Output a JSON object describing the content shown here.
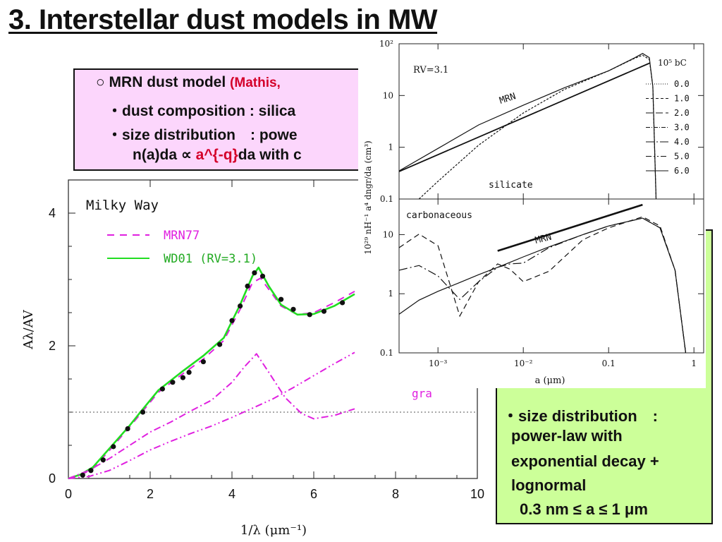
{
  "slide": {
    "title": "3. Interstellar dust models in MW"
  },
  "mrn_box": {
    "line1_bullet": "○",
    "line1_text": "MRN dust model",
    "line1_ref": "(Mathis,",
    "line2": "・dust composition : silica",
    "line3": "・size distribution　: powe",
    "line4_a": "n(a)da ∝ ",
    "line4_red": "a^{-q}",
    "line4_b": "da with c"
  },
  "wd_box": {
    "line1": "・size distribution　:",
    "line2": "power-law with",
    "line3": "exponential decay +",
    "line4": "lognormal",
    "line5": "0.3 nm ≤ a ≤ 1 μm"
  },
  "colors": {
    "mrn_box_bg": "#fcd6fc",
    "wd_box_bg": "#ccff99",
    "accent_red": "#d4002a",
    "mrn_curve": "#e020e0",
    "wd01_curve": "#22dd22"
  },
  "chart_data": [
    {
      "type": "line",
      "title": "Milky Way",
      "xlabel": "1/λ (μm⁻¹)",
      "ylabel": "Aλ/AV",
      "xlim": [
        0,
        10
      ],
      "ylim": [
        0,
        4.5
      ],
      "xticks": [
        0,
        2,
        4,
        6,
        8,
        10
      ],
      "yticks": [
        0,
        2,
        4
      ],
      "reference_line_y": 1,
      "legend": [
        "MRN77",
        "WD01 (RV=3.1)"
      ],
      "series": [
        {
          "name": "MRN77",
          "style": "dashed",
          "color": "#e020e0",
          "x": [
            0.0,
            0.3,
            0.6,
            1.0,
            1.5,
            1.8,
            2.2,
            2.8,
            3.3,
            3.8,
            4.2,
            4.5,
            4.7,
            4.9,
            5.2,
            5.6,
            6.0,
            6.5,
            7.0
          ],
          "y": [
            0.0,
            0.05,
            0.15,
            0.42,
            0.78,
            1.0,
            1.3,
            1.58,
            1.8,
            2.08,
            2.55,
            2.95,
            3.02,
            2.85,
            2.6,
            2.47,
            2.5,
            2.65,
            2.82
          ]
        },
        {
          "name": "WD01 (RV=3.1)",
          "style": "solid",
          "color": "#22dd22",
          "x": [
            0.0,
            0.3,
            0.6,
            1.0,
            1.5,
            1.8,
            2.2,
            2.8,
            3.3,
            3.8,
            4.2,
            4.5,
            4.65,
            4.9,
            5.2,
            5.6,
            6.0,
            6.5,
            7.0
          ],
          "y": [
            0.0,
            0.06,
            0.17,
            0.45,
            0.8,
            1.03,
            1.33,
            1.62,
            1.85,
            2.12,
            2.62,
            3.05,
            3.18,
            2.9,
            2.62,
            2.47,
            2.48,
            2.6,
            2.78
          ]
        },
        {
          "name": "",
          "style": "dashdot",
          "color": "#e020e0",
          "x": [
            0.0,
            0.5,
            1.0,
            1.5,
            2.0,
            2.5,
            3.0,
            3.5,
            4.0,
            4.3,
            4.6,
            4.9,
            5.3,
            5.7,
            6.0,
            6.5,
            7.0
          ],
          "y": [
            0.0,
            0.12,
            0.3,
            0.5,
            0.7,
            0.85,
            1.02,
            1.18,
            1.45,
            1.68,
            1.88,
            1.6,
            1.22,
            0.98,
            0.9,
            0.95,
            1.05
          ]
        },
        {
          "name": "",
          "style": "dashdotdot",
          "color": "#e020e0",
          "x": [
            0.0,
            0.5,
            1.0,
            1.5,
            2.0,
            2.5,
            3.0,
            3.5,
            4.0,
            4.5,
            5.0,
            5.5,
            6.0,
            6.5,
            7.0
          ],
          "y": [
            0.0,
            0.03,
            0.12,
            0.27,
            0.43,
            0.56,
            0.68,
            0.79,
            0.92,
            1.06,
            1.2,
            1.37,
            1.55,
            1.73,
            1.9
          ]
        }
      ],
      "observed_points": {
        "x": [
          0.35,
          0.55,
          0.85,
          1.1,
          1.45,
          1.82,
          2.3,
          2.55,
          2.8,
          2.95,
          3.3,
          3.7,
          4.0,
          4.2,
          4.38,
          4.55,
          4.75,
          5.2,
          5.5,
          5.9,
          6.25,
          6.7
        ],
        "y": [
          0.05,
          0.12,
          0.28,
          0.48,
          0.75,
          1.0,
          1.35,
          1.45,
          1.52,
          1.6,
          1.76,
          2.02,
          2.38,
          2.6,
          2.9,
          3.1,
          3.05,
          2.7,
          2.55,
          2.47,
          2.52,
          2.65
        ]
      },
      "annotations": [
        "gra"
      ]
    },
    {
      "type": "line",
      "title": "",
      "xlabel": "a (μm)",
      "ylabel": "10²⁹ nH⁻¹ a⁴ dngr/da (cm³)",
      "xscale": "log",
      "yscale": "log",
      "xlim": [
        0.00035,
        1.3
      ],
      "xticks": [
        "10⁻³",
        "10⁻²",
        "0.1",
        "1"
      ],
      "legend_title": "10⁵ bC",
      "legend": [
        "0.0",
        "1.0",
        "2.0",
        "3.0",
        "4.0",
        "5.0",
        "6.0"
      ],
      "panels": [
        {
          "label": "silicate",
          "annotation": "RV=3.1",
          "ylim": [
            0.1,
            100
          ],
          "yticks": [
            "0.1",
            "1",
            "10",
            "10²"
          ],
          "mrn_label": "MRN",
          "mrn_line": {
            "x": [
              0.00035,
              0.3
            ],
            "y": [
              0.34,
              42
            ]
          },
          "series": [
            {
              "x": [
                0.0006,
                0.001,
                0.003,
                0.01,
                0.03,
                0.1,
                0.2,
                0.25,
                0.3,
                0.33,
                0.36
              ],
              "y": [
                0.1,
                0.22,
                1.1,
                4.6,
                13,
                30,
                52,
                60,
                50,
                15,
                0.1
              ]
            },
            {
              "x": [
                0.00035,
                0.001,
                0.003,
                0.01,
                0.03,
                0.1,
                0.2,
                0.25,
                0.3,
                0.33,
                0.36
              ],
              "y": [
                0.35,
                0.95,
                2.7,
                6.5,
                14,
                30,
                53,
                65,
                54,
                15,
                0.1
              ]
            }
          ]
        },
        {
          "label": "carbonaceous",
          "ylim": [
            0.1,
            40
          ],
          "yticks": [
            "0.1",
            "1",
            "10"
          ],
          "mrn_label": "MRN",
          "mrn_line": {
            "x": [
              0.005,
              0.25
            ],
            "y": [
              5.3,
              32
            ]
          },
          "series": [
            {
              "x": [
                0.00035,
                0.0006,
                0.001,
                0.0018,
                0.003,
                0.005,
                0.007,
                0.01,
                0.02,
                0.05,
                0.1,
                0.25,
                0.4,
                0.6,
                0.8
              ],
              "y": [
                0.45,
                0.78,
                1.1,
                1.55,
                2.1,
                2.8,
                3.4,
                4.2,
                6.2,
                10,
                14,
                19,
                13,
                2.5,
                0.1
              ]
            },
            {
              "x": [
                0.00035,
                0.0006,
                0.001,
                0.0018,
                0.003,
                0.005,
                0.007,
                0.01,
                0.02,
                0.05,
                0.1,
                0.25,
                0.4,
                0.6,
                0.8
              ],
              "y": [
                2.5,
                3.0,
                2.0,
                0.8,
                1.6,
                2.8,
                3.2,
                3.3,
                6.0,
                10,
                14,
                19,
                13,
                2.5,
                0.1
              ]
            },
            {
              "x": [
                0.00035,
                0.0006,
                0.001,
                0.0018,
                0.003,
                0.005,
                0.007,
                0.01,
                0.02,
                0.05,
                0.1,
                0.25,
                0.4,
                0.6,
                0.8
              ],
              "y": [
                6.0,
                10.2,
                6.5,
                0.42,
                1.6,
                3.2,
                2.6,
                1.6,
                2.4,
                8.2,
                13,
                20,
                14,
                2.5,
                0.1
              ]
            }
          ]
        }
      ]
    }
  ]
}
